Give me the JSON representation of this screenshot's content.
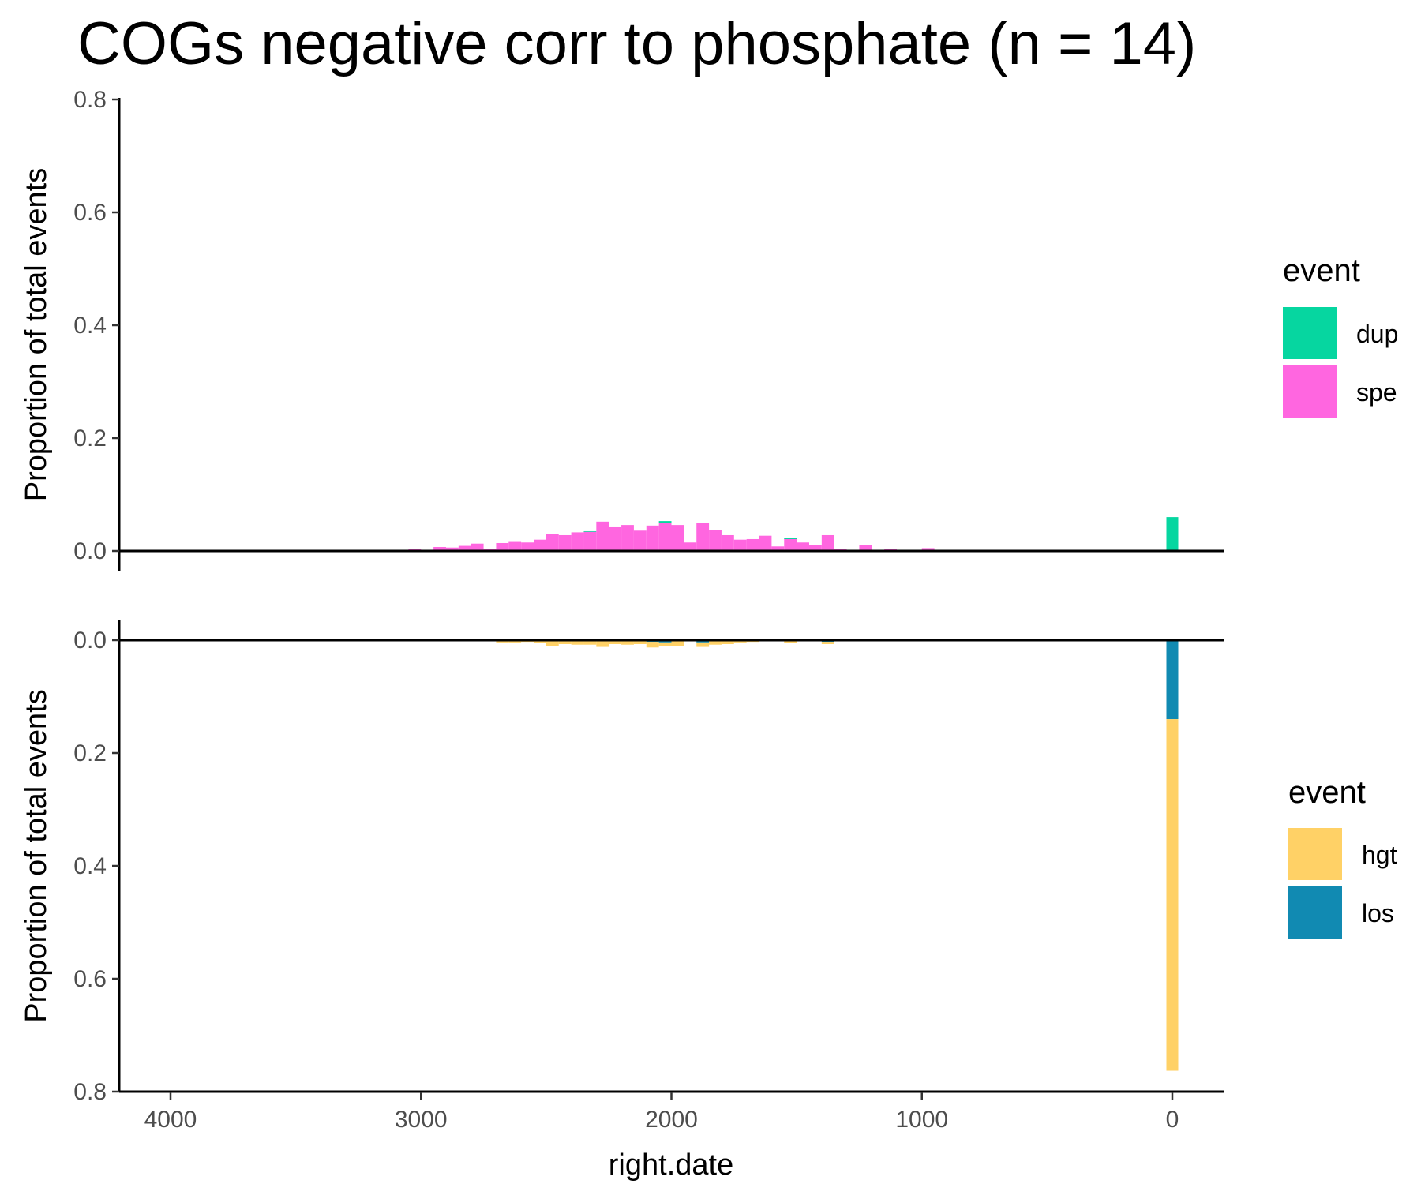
{
  "chart_data": {
    "type": "bar",
    "title": "COGs negative corr to phosphate (n = 14)",
    "xlabel": "right.date",
    "xlim": [
      4200,
      -200
    ],
    "x_reversed": true,
    "x_ticks": [
      4000,
      3000,
      2000,
      1000,
      0
    ],
    "panels": [
      {
        "name": "top",
        "ylabel": "Proportion of total events",
        "ylim": [
          0,
          0.8
        ],
        "y_ticks": [
          "0.0",
          "0.2",
          "0.4",
          "0.6",
          "0.8"
        ],
        "y_direction": "up",
        "legend_title": "event",
        "series": [
          {
            "name": "spe",
            "color": "#FF66E0"
          },
          {
            "name": "dup",
            "color": "#06D6A0"
          }
        ],
        "bin_width": 50,
        "bins": [
          {
            "x": 3025,
            "spe": 0.004,
            "dup": 0
          },
          {
            "x": 2925,
            "spe": 0.007,
            "dup": 0
          },
          {
            "x": 2875,
            "spe": 0.006,
            "dup": 0
          },
          {
            "x": 2825,
            "spe": 0.009,
            "dup": 0
          },
          {
            "x": 2775,
            "spe": 0.013,
            "dup": 0
          },
          {
            "x": 2725,
            "spe": 0.004,
            "dup": 0
          },
          {
            "x": 2675,
            "spe": 0.014,
            "dup": 0
          },
          {
            "x": 2625,
            "spe": 0.016,
            "dup": 0
          },
          {
            "x": 2575,
            "spe": 0.015,
            "dup": 0
          },
          {
            "x": 2525,
            "spe": 0.02,
            "dup": 0
          },
          {
            "x": 2475,
            "spe": 0.03,
            "dup": 0
          },
          {
            "x": 2425,
            "spe": 0.028,
            "dup": 0
          },
          {
            "x": 2375,
            "spe": 0.033,
            "dup": 0
          },
          {
            "x": 2325,
            "spe": 0.034,
            "dup": 0.001
          },
          {
            "x": 2275,
            "spe": 0.052,
            "dup": 0
          },
          {
            "x": 2225,
            "spe": 0.042,
            "dup": 0
          },
          {
            "x": 2175,
            "spe": 0.046,
            "dup": 0
          },
          {
            "x": 2125,
            "spe": 0.036,
            "dup": 0
          },
          {
            "x": 2075,
            "spe": 0.045,
            "dup": 0
          },
          {
            "x": 2025,
            "spe": 0.05,
            "dup": 0.003
          },
          {
            "x": 1975,
            "spe": 0.046,
            "dup": 0
          },
          {
            "x": 1925,
            "spe": 0.015,
            "dup": 0
          },
          {
            "x": 1875,
            "spe": 0.049,
            "dup": 0
          },
          {
            "x": 1825,
            "spe": 0.037,
            "dup": 0
          },
          {
            "x": 1775,
            "spe": 0.028,
            "dup": 0
          },
          {
            "x": 1725,
            "spe": 0.02,
            "dup": 0
          },
          {
            "x": 1675,
            "spe": 0.021,
            "dup": 0
          },
          {
            "x": 1625,
            "spe": 0.027,
            "dup": 0
          },
          {
            "x": 1575,
            "spe": 0.008,
            "dup": 0
          },
          {
            "x": 1525,
            "spe": 0.021,
            "dup": 0.002
          },
          {
            "x": 1475,
            "spe": 0.015,
            "dup": 0
          },
          {
            "x": 1425,
            "spe": 0.01,
            "dup": 0
          },
          {
            "x": 1375,
            "spe": 0.028,
            "dup": 0
          },
          {
            "x": 1325,
            "spe": 0.004,
            "dup": 0
          },
          {
            "x": 1225,
            "spe": 0.01,
            "dup": 0
          },
          {
            "x": 1125,
            "spe": 0.003,
            "dup": 0
          },
          {
            "x": 975,
            "spe": 0.005,
            "dup": 0
          },
          {
            "x": 0,
            "spe": 0,
            "dup": 0.06
          }
        ]
      },
      {
        "name": "bottom",
        "ylabel": "Proportion of total events",
        "ylim": [
          0,
          0.8
        ],
        "y_ticks": [
          "0.0",
          "0.2",
          "0.4",
          "0.6",
          "0.8"
        ],
        "y_direction": "down",
        "legend_title": "event",
        "series": [
          {
            "name": "los",
            "color": "#118AB2"
          },
          {
            "name": "hgt",
            "color": "#FFD166"
          }
        ],
        "bin_width": 50,
        "bins": [
          {
            "x": 2825,
            "los": 0,
            "hgt": 0.002
          },
          {
            "x": 2675,
            "los": 0,
            "hgt": 0.004
          },
          {
            "x": 2625,
            "los": 0,
            "hgt": 0.004
          },
          {
            "x": 2575,
            "los": 0,
            "hgt": 0.003
          },
          {
            "x": 2525,
            "los": 0.001,
            "hgt": 0.004
          },
          {
            "x": 2475,
            "los": 0.002,
            "hgt": 0.009
          },
          {
            "x": 2425,
            "los": 0.001,
            "hgt": 0.006
          },
          {
            "x": 2375,
            "los": 0.002,
            "hgt": 0.006
          },
          {
            "x": 2325,
            "los": 0.001,
            "hgt": 0.007
          },
          {
            "x": 2275,
            "los": 0.002,
            "hgt": 0.01
          },
          {
            "x": 2225,
            "los": 0.001,
            "hgt": 0.006
          },
          {
            "x": 2175,
            "los": 0.002,
            "hgt": 0.006
          },
          {
            "x": 2125,
            "los": 0.001,
            "hgt": 0.006
          },
          {
            "x": 2075,
            "los": 0.003,
            "hgt": 0.01
          },
          {
            "x": 2025,
            "los": 0.004,
            "hgt": 0.006
          },
          {
            "x": 1975,
            "los": 0.002,
            "hgt": 0.008
          },
          {
            "x": 1875,
            "los": 0.004,
            "hgt": 0.008
          },
          {
            "x": 1825,
            "los": 0.001,
            "hgt": 0.007
          },
          {
            "x": 1775,
            "los": 0.001,
            "hgt": 0.006
          },
          {
            "x": 1725,
            "los": 0.001,
            "hgt": 0.003
          },
          {
            "x": 1675,
            "los": 0.001,
            "hgt": 0.002
          },
          {
            "x": 1525,
            "los": 0.001,
            "hgt": 0.004
          },
          {
            "x": 1425,
            "los": 0,
            "hgt": 0.002
          },
          {
            "x": 1375,
            "los": 0.003,
            "hgt": 0.004
          },
          {
            "x": 0,
            "los": 0.14,
            "hgt": 0.623
          }
        ]
      }
    ]
  }
}
